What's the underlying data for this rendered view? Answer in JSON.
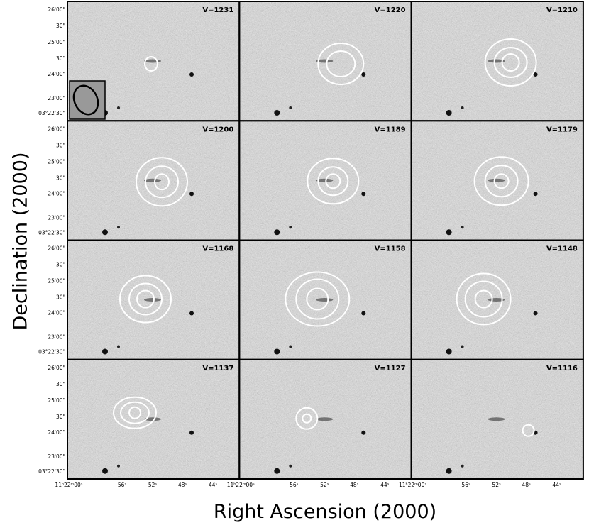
{
  "figure": {
    "y_axis_label": "Declination (2000)",
    "x_axis_label": "Right Ascension (2000)",
    "y_ticks": [
      "26'00\"",
      "30\"",
      "25'00\"",
      "30\"",
      "24'00\"",
      "23'00\"",
      "03°22'30\""
    ],
    "x_ticks": [
      "11ʰ22ᵐ00ˢ",
      "56ˢ",
      "52ˢ",
      "48ˢ",
      "44ˢ"
    ],
    "panels": [
      {
        "velocity": "V=1231"
      },
      {
        "velocity": "V=1220"
      },
      {
        "velocity": "V=1210"
      },
      {
        "velocity": "V=1200"
      },
      {
        "velocity": "V=1189"
      },
      {
        "velocity": "V=1179"
      },
      {
        "velocity": "V=1168"
      },
      {
        "velocity": "V=1158"
      },
      {
        "velocity": "V=1148"
      },
      {
        "velocity": "V=1137"
      },
      {
        "velocity": "V=1127"
      },
      {
        "velocity": "V=1116"
      }
    ]
  }
}
